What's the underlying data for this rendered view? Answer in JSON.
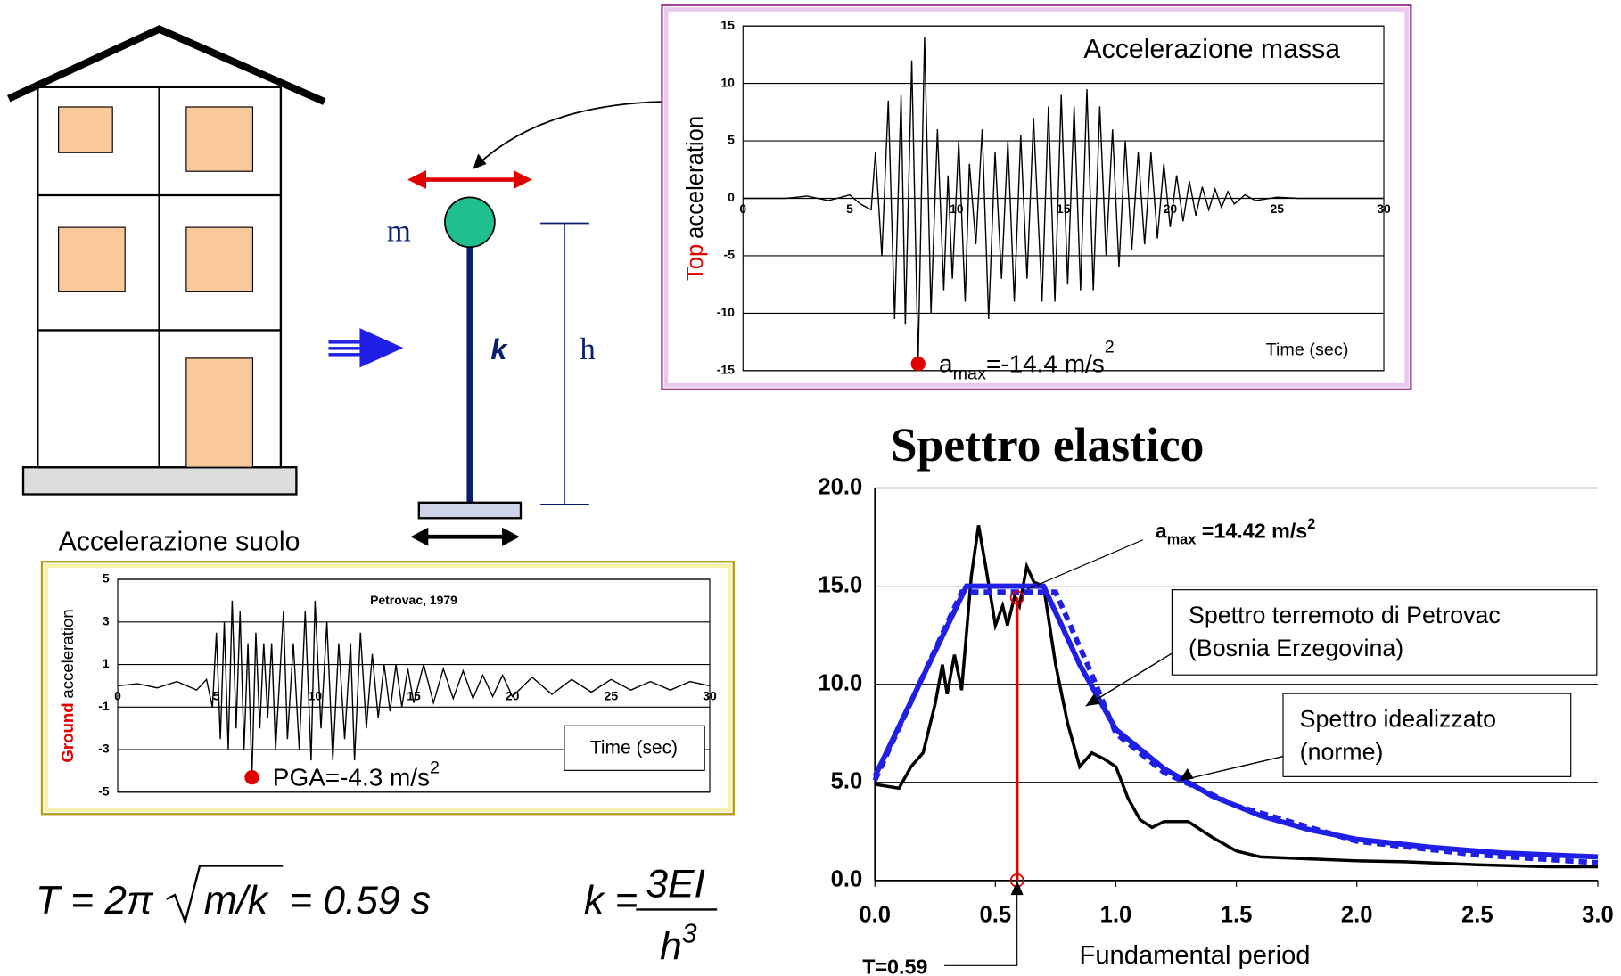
{
  "chart_data": [
    {
      "type": "line",
      "title": "Accelerazione massa",
      "ylabel_parts": [
        "Top",
        "acceleration"
      ],
      "xlabel": "Time (sec)",
      "color": "#000000",
      "xlim": [
        0,
        30
      ],
      "ylim": [
        -15,
        15
      ],
      "xticks": [
        0,
        5,
        10,
        15,
        20,
        25,
        30
      ],
      "yticks": [
        -15,
        -10,
        -5,
        0,
        5,
        10,
        15
      ],
      "grid": true,
      "x": [
        0,
        2,
        3,
        4,
        5,
        5.5,
        6,
        6.2,
        6.5,
        6.8,
        7.1,
        7.4,
        7.6,
        7.9,
        8.2,
        8.5,
        8.8,
        9.1,
        9.4,
        9.6,
        9.8,
        10.1,
        10.4,
        10.6,
        10.9,
        11.2,
        11.5,
        11.8,
        12.1,
        12.4,
        12.7,
        13,
        13.3,
        13.6,
        14,
        14.3,
        14.6,
        14.9,
        15.2,
        15.5,
        15.8,
        16.1,
        16.4,
        16.7,
        17,
        17.3,
        17.6,
        17.9,
        18.2,
        18.5,
        18.8,
        19.1,
        19.4,
        19.7,
        20,
        20.3,
        20.6,
        20.9,
        21.2,
        21.5,
        21.8,
        22.1,
        22.4,
        22.7,
        23,
        23.5,
        24,
        25,
        26,
        30
      ],
      "values": [
        0,
        0,
        0.2,
        -0.2,
        0.3,
        -0.5,
        -1,
        4,
        -5,
        8.5,
        -10.5,
        9,
        -11,
        12,
        -14.4,
        14,
        -10,
        6,
        -8,
        2,
        -7,
        5,
        -9,
        3,
        -4,
        6,
        -10.5,
        4,
        -7,
        5,
        -9,
        5.5,
        -7,
        7,
        -9,
        8,
        -9,
        9,
        -7.5,
        8,
        -8,
        9.5,
        -8,
        8,
        -5,
        6,
        -6,
        5,
        -4.5,
        4,
        -4,
        4,
        -3.5,
        3,
        -2.5,
        2,
        -2,
        1.5,
        -1.5,
        1,
        -1,
        0.8,
        -0.8,
        0.6,
        -0.5,
        0.3,
        -0.2,
        0.1,
        0,
        0
      ],
      "peak": {
        "x": 8.2,
        "y": -14.4,
        "label_parts": [
          "a",
          "max",
          "=-14.4 m/s",
          "2"
        ],
        "color": "#e00000"
      }
    },
    {
      "type": "line",
      "title": "Petrovac, 1979",
      "heading": "Accelerazione suolo",
      "ylabel_parts": [
        "Ground",
        "acceleration"
      ],
      "xlabel": "Time (sec)",
      "color": "#000000",
      "xlim": [
        0,
        30
      ],
      "ylim": [
        -5,
        5
      ],
      "xticks": [
        0,
        5,
        10,
        15,
        20,
        25,
        30
      ],
      "yticks": [
        -5,
        -3,
        -1,
        1,
        3,
        5
      ],
      "grid": true,
      "x": [
        0,
        1,
        2,
        3,
        4,
        4.5,
        4.8,
        5,
        5.2,
        5.4,
        5.6,
        5.8,
        6,
        6.2,
        6.4,
        6.6,
        6.8,
        7,
        7.2,
        7.4,
        7.6,
        7.8,
        8,
        8.4,
        8.6,
        8.9,
        9.2,
        9.5,
        9.8,
        10,
        10.3,
        10.6,
        10.9,
        11.2,
        11.5,
        11.8,
        12,
        12.3,
        12.6,
        12.9,
        13.2,
        13.5,
        13.8,
        14.1,
        14.4,
        14.7,
        15,
        15.5,
        16,
        16.5,
        17,
        17.5,
        18,
        18.5,
        19,
        19.5,
        20,
        21,
        22,
        23,
        24,
        25,
        26,
        27,
        28,
        29,
        30
      ],
      "values": [
        0,
        0.1,
        -0.1,
        0.2,
        -0.2,
        0.3,
        -1,
        2.5,
        -2.5,
        3,
        -3,
        4,
        -2,
        3.5,
        -3,
        2,
        -4.3,
        2.5,
        -2,
        2,
        -1.5,
        2,
        -3,
        3.5,
        -2.5,
        2,
        -3,
        3.5,
        -3.5,
        4,
        -2,
        3,
        -3.5,
        2,
        -2.5,
        2,
        -3.5,
        2.5,
        -2,
        1.5,
        -1.5,
        1,
        -1.2,
        1,
        -1,
        0.8,
        -0.8,
        1,
        -0.8,
        0.8,
        -0.6,
        0.7,
        -0.6,
        0.5,
        -0.5,
        0.5,
        -0.5,
        0.4,
        -0.4,
        0.3,
        -0.3,
        0.3,
        -0.2,
        0.2,
        -0.2,
        0.2,
        0
      ],
      "peak": {
        "x": 6.8,
        "y": -4.3,
        "label_parts": [
          "PGA=-4.3 m/s",
          "2"
        ],
        "color": "#e00000"
      }
    },
    {
      "type": "line",
      "title": "Spettro elastico",
      "xlabel": "Fundamental period",
      "xlim": [
        0,
        3
      ],
      "ylim": [
        0,
        20
      ],
      "xticks": [
        {
          "value": 0,
          "label": "0.0"
        },
        {
          "value": 0.5,
          "label": "0.5"
        },
        {
          "value": 1,
          "label": "1.0"
        },
        {
          "value": 1.5,
          "label": "1.5"
        },
        {
          "value": 2,
          "label": "2.0"
        },
        {
          "value": 2.5,
          "label": "2.5"
        },
        {
          "value": 3,
          "label": "3.0"
        }
      ],
      "yticks": [
        {
          "value": 0,
          "label": "0.0"
        },
        {
          "value": 5,
          "label": "5.0"
        },
        {
          "value": 10,
          "label": "10.0"
        },
        {
          "value": 15,
          "label": "15.0"
        },
        {
          "value": 20,
          "label": "20.0"
        }
      ],
      "grid": true,
      "series": [
        {
          "name_lines": [
            "Spettro terremoto di Petrovac",
            "(Bosnia Erzegovina)"
          ],
          "color": "#000000",
          "dash": false,
          "x": [
            0,
            0.1,
            0.15,
            0.2,
            0.25,
            0.28,
            0.3,
            0.33,
            0.36,
            0.4,
            0.43,
            0.46,
            0.5,
            0.53,
            0.55,
            0.58,
            0.6,
            0.63,
            0.66,
            0.7,
            0.75,
            0.8,
            0.85,
            0.9,
            0.95,
            1,
            1.05,
            1.1,
            1.15,
            1.2,
            1.3,
            1.4,
            1.5,
            1.6,
            1.8,
            2,
            2.2,
            2.5,
            2.8,
            3
          ],
          "values": [
            4.9,
            4.7,
            5.8,
            6.5,
            9,
            11,
            9.5,
            11.5,
            9.7,
            15.5,
            18.1,
            16,
            13,
            14,
            13,
            14.5,
            14,
            16,
            15.2,
            15,
            11,
            8,
            5.8,
            6.5,
            6.2,
            5.8,
            4.2,
            3.1,
            2.7,
            3,
            3,
            2.2,
            1.5,
            1.2,
            1.1,
            1,
            0.95,
            0.8,
            0.7,
            0.7
          ]
        },
        {
          "name_lines": [
            "Spettro idealizzato",
            "(norme)"
          ],
          "color": "#1f1fe6",
          "dash": false,
          "x": [
            0,
            0.38,
            0.7,
            0.85,
            1,
            1.2,
            1.4,
            1.6,
            1.8,
            2,
            2.3,
            2.6,
            3
          ],
          "values": [
            5.3,
            15,
            15,
            11,
            7.7,
            5.7,
            4.3,
            3.3,
            2.6,
            2.1,
            1.7,
            1.4,
            1.2
          ]
        },
        {
          "color": "#1f1fe6",
          "dash": true,
          "x": [
            0,
            0.36,
            0.75,
            0.9,
            1,
            1.2,
            1.5,
            2,
            2.5,
            3
          ],
          "values": [
            5.1,
            14.7,
            14.7,
            10.5,
            7.5,
            5.5,
            3.8,
            2,
            1.3,
            0.9
          ]
        }
      ],
      "marker": {
        "x": 0.59,
        "y": 14.42,
        "color": "#e00000",
        "x_label": "T=0.59",
        "y_label_parts": [
          "a",
          "max",
          " =14.42 m/s",
          "2"
        ]
      }
    }
  ],
  "diagram": {
    "mass": "m",
    "stiffness": "k",
    "height": "h",
    "period_formula": {
      "lhs": "T = 2π",
      "radicand": "m/k",
      "rhs": "= 0.59 s"
    },
    "stiffness_formula": {
      "lhs": "k =",
      "numerator": "3EI",
      "denominator": "h",
      "exponent": "3"
    }
  }
}
